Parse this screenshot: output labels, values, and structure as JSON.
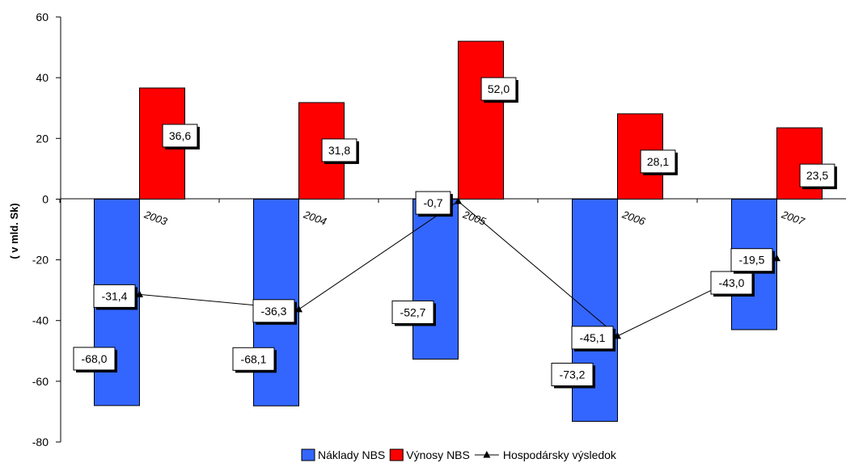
{
  "chart_data": {
    "type": "bar",
    "categories": [
      "2003",
      "2004",
      "2005",
      "2006",
      "2007"
    ],
    "ylabel": "( v mld. Sk)",
    "ylim": [
      -80,
      60
    ],
    "yticks": [
      -80,
      -60,
      -40,
      -20,
      0,
      20,
      40,
      60
    ],
    "grid": false,
    "legend_position": "bottom",
    "series": [
      {
        "name": "Náklady NBS",
        "kind": "bar",
        "color": "#3366FF",
        "values": [
          -68.0,
          -68.1,
          -52.7,
          -73.2,
          -43.0
        ],
        "labels": [
          "-68,0",
          "-68,1",
          "-52,7",
          "-73,2",
          "-43,0"
        ]
      },
      {
        "name": "Výnosy NBS",
        "kind": "bar",
        "color": "#FF0000",
        "values": [
          36.6,
          31.8,
          52.0,
          28.1,
          23.5
        ],
        "labels": [
          "36,6",
          "31,8",
          "52,0",
          "28,1",
          "23,5"
        ]
      },
      {
        "name": "Hospodársky výsledok",
        "kind": "line",
        "color": "#000000",
        "values": [
          -31.4,
          -36.3,
          -0.7,
          -45.1,
          -19.5
        ],
        "labels": [
          "-31,4",
          "-36,3",
          "-0,7",
          "-45,1",
          "-19,5"
        ]
      }
    ]
  }
}
